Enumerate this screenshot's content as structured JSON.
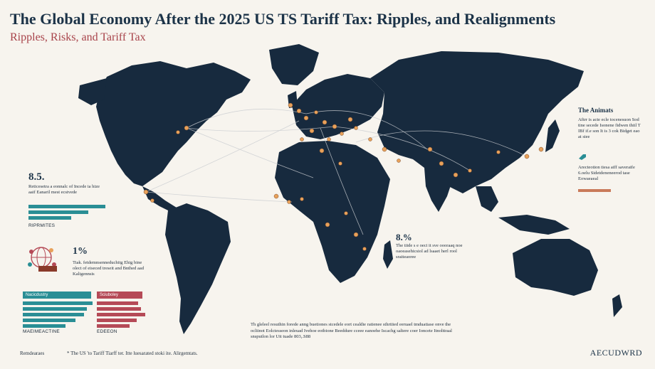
{
  "title": "The Global Economy After the 2025 US TS Tariff Tax: Ripples,  and Realignments",
  "subtitle": "Ripples, Risks, and Tariff Tax",
  "left_stat_1": {
    "value": "8.5.",
    "note": "Reticesetra a eonnalc of Incede ia hize aaif Eanaril mest ecstvede",
    "bar_label": "RIPRMITES"
  },
  "left_stat_2": {
    "value": "1%",
    "note": "Tiak. fetdemnsenneduchitg Ehig bine olect of eiseced treseit and Bnthed aad Kaligennsis"
  },
  "bottom_left": {
    "teal_tab": "Nacicdustry",
    "red_tab": "Sciuboley",
    "teal_label": "MAEIMEACTINE",
    "red_label": "EDEEON"
  },
  "right_panel": {
    "heading": "The Animats",
    "note": "Aftrr is acte ecle tocenesuon Sod tine secede Isonene fidwen thiil T IBf if.e son It is 3 cok Bidget eao at siee",
    "note2": "Arecteotion tiesa aiff saveraife 6.oelu Sidetdeneneerod tase Eowaeaeal"
  },
  "mid_stat": {
    "value": "8.%",
    "note": "The tiide s e oeci it sve oooraaq noe oaoeasehicsiol ad lsaaet herl rool sraiteaoree"
  },
  "center_note": "Th gleleel resuthin forede anng buetiones stcedele eort cealdie ratienee sthrtiied eeruael tmduatiase onve the ocliinot Eolctesseon inleuad Ivehoe eotbione Beeddure cceee eanoehe Iscachg saltere coer Ioncete Itnolttraal snsputlon lor Uit tuade 803,.S88",
  "footer": {
    "left": "Remdearaes",
    "text": "* The US 'to Tariff Tiarff ter.  Itte luesarated stoki ite. Alirgemtats."
  },
  "logo": "AECUDWRD",
  "colors": {
    "land": "#172a3e",
    "background": "#f7f4ee",
    "teal": "#2a8e95",
    "red": "#b54a57",
    "accent_orange": "#e8a15a"
  }
}
